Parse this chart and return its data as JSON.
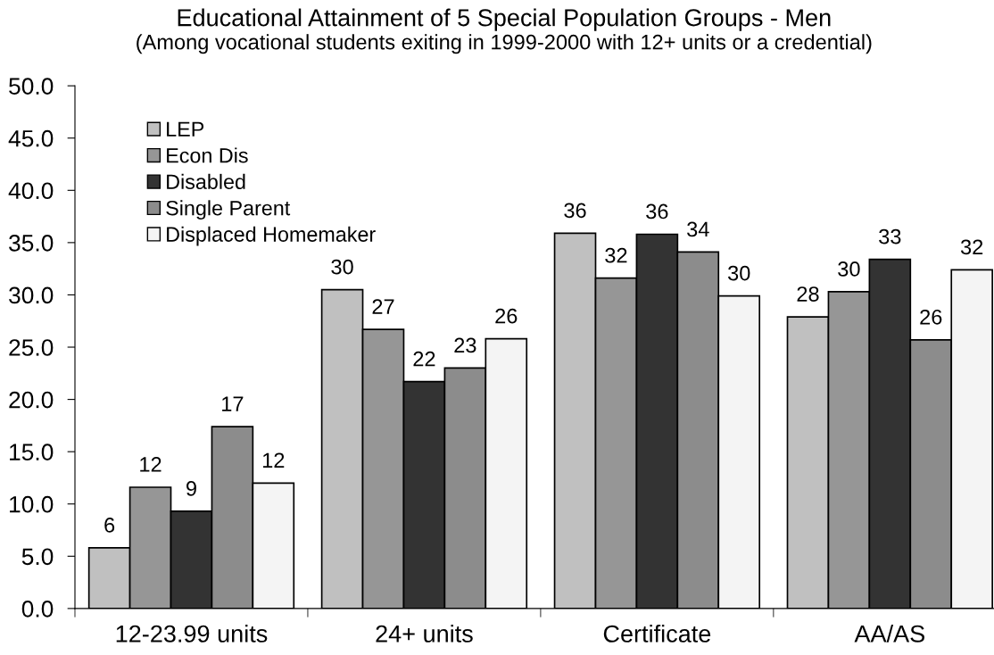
{
  "chart_data": {
    "type": "bar",
    "title": "Educational Attainment of 5 Special Population Groups - Men",
    "subtitle": "(Among vocational students exiting in 1999-2000 with 12+ units or a credential)",
    "categories": [
      "12-23.99 units",
      "24+ units",
      "Certificate",
      "AA/AS"
    ],
    "series": [
      {
        "name": "LEP",
        "color": "#c0c0c0",
        "values": [
          5.8,
          30.5,
          35.9,
          27.9
        ],
        "value_labels": [
          "6",
          "30",
          "36",
          "28"
        ]
      },
      {
        "name": "Econ Dis",
        "color": "#969696",
        "values": [
          11.6,
          26.7,
          31.6,
          30.3
        ],
        "value_labels": [
          "12",
          "27",
          "32",
          "30"
        ]
      },
      {
        "name": "Disabled",
        "color": "#333333",
        "values": [
          9.3,
          21.7,
          35.8,
          33.4
        ],
        "value_labels": [
          "9",
          "22",
          "36",
          "33"
        ]
      },
      {
        "name": "Single Parent",
        "color": "#8c8c8c",
        "values": [
          17.4,
          23.0,
          34.1,
          25.7
        ],
        "value_labels": [
          "17",
          "23",
          "34",
          "26"
        ]
      },
      {
        "name": "Displaced Homemaker",
        "color": "#f4f4f4",
        "values": [
          12.0,
          25.8,
          29.9,
          32.4
        ],
        "value_labels": [
          "12",
          "26",
          "30",
          "32"
        ]
      }
    ],
    "ylim": [
      0,
      50
    ],
    "yticks": [
      {
        "value": 0,
        "label": "0.0"
      },
      {
        "value": 5,
        "label": "5.0"
      },
      {
        "value": 10,
        "label": "10.0"
      },
      {
        "value": 15,
        "label": "15.0"
      },
      {
        "value": 20,
        "label": "20.0"
      },
      {
        "value": 25,
        "label": "25.0"
      },
      {
        "value": 30,
        "label": "30.0"
      },
      {
        "value": 35,
        "label": "35.0"
      },
      {
        "value": 40,
        "label": "40.0"
      },
      {
        "value": 45,
        "label": "45.0"
      },
      {
        "value": 50,
        "label": "50.0"
      }
    ],
    "grid": false,
    "legend": "top left"
  }
}
